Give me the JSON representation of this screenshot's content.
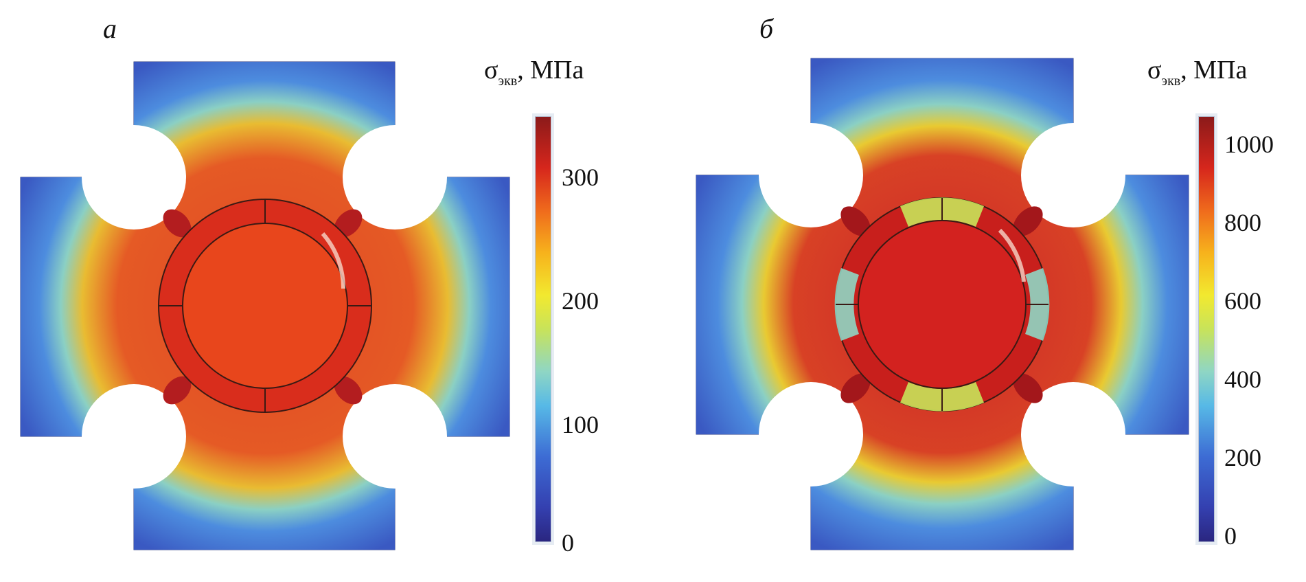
{
  "panels": [
    {
      "letter": "а",
      "colorbar_title": "σ",
      "colorbar_subscript": "экв",
      "colorbar_unit": ", МПа",
      "ticks": [
        "300",
        "200",
        "100",
        "0"
      ],
      "colors": {
        "plate": "#3a59c2",
        "center": "#e8461c",
        "rim": "#d92d1c",
        "hot": "#b31d1f"
      }
    },
    {
      "letter": "б",
      "colorbar_title": "σ",
      "colorbar_subscript": "экв",
      "colorbar_unit": ", МПа",
      "ticks": [
        "1000",
        "800",
        "600",
        "400",
        "200",
        "0"
      ],
      "colors": {
        "plate": "#3a59c2",
        "center": "#d3221f",
        "rim": "#c81f1c",
        "hot": "#a3171b"
      }
    }
  ]
}
